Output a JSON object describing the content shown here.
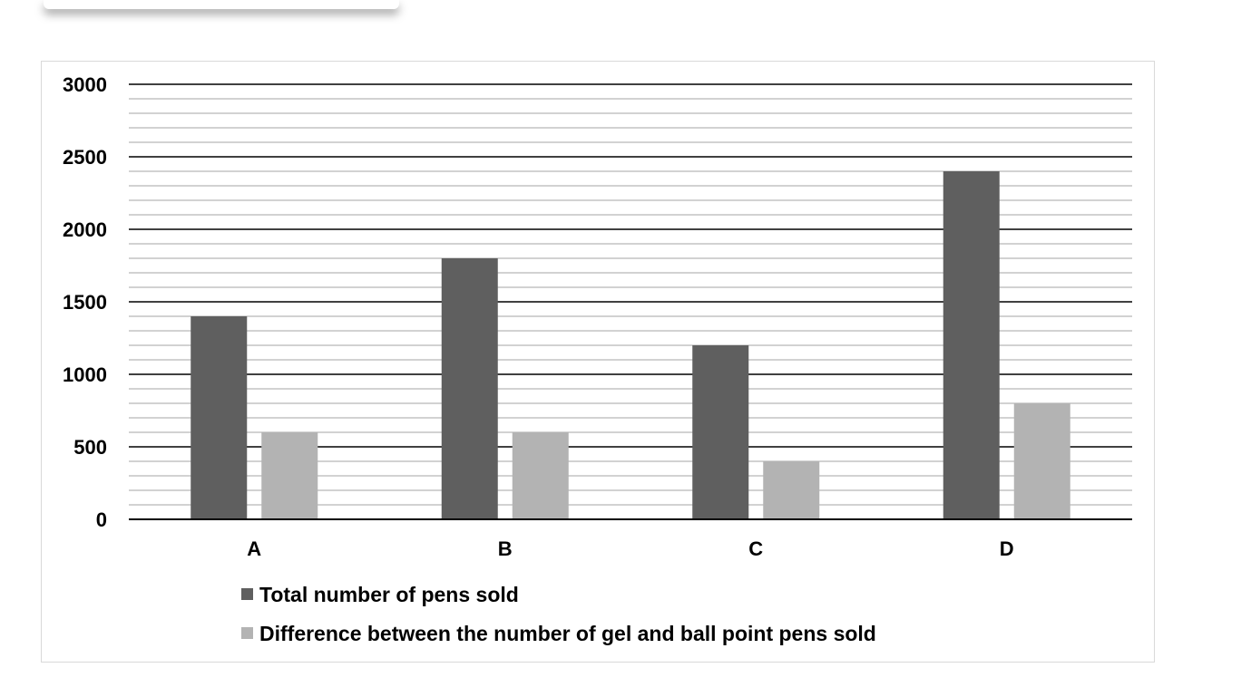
{
  "chart_data": {
    "type": "bar",
    "categories": [
      "A",
      "B",
      "C",
      "D"
    ],
    "series": [
      {
        "name": "Total number of pens sold",
        "values": [
          1400,
          1800,
          1200,
          2400
        ],
        "color": "#5f5f5f"
      },
      {
        "name": "Difference between the number of gel and ball point pens sold",
        "values": [
          600,
          600,
          400,
          800
        ],
        "color": "#b3b3b3"
      }
    ],
    "title": "",
    "xlabel": "",
    "ylabel": "",
    "ylim": [
      0,
      3000
    ],
    "yticks": [
      "0",
      "500",
      "1000",
      "1500",
      "2000",
      "2500",
      "3000"
    ],
    "major_step": 500,
    "minor_step": 100,
    "grid": true,
    "legend_position": "bottom"
  }
}
